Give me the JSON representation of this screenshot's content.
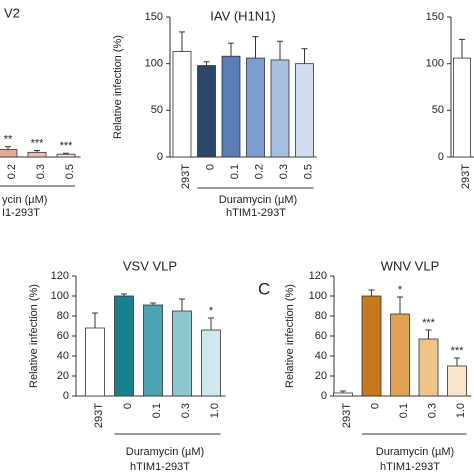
{
  "chart_data": [
    {
      "type": "bar",
      "title": "V2",
      "categories": [
        "0.2",
        "0.3",
        "0.5"
      ],
      "values": [
        8,
        5,
        3
      ],
      "errors": [
        3,
        2,
        1
      ],
      "annotations": [
        "**",
        "***",
        "***"
      ],
      "colors": [
        "#e3a999",
        "#ecc0b3",
        "#f5dcd3"
      ],
      "ylim": [
        0,
        150
      ],
      "xlabel": "ycin (µM)",
      "group_label": "I1-293T"
    },
    {
      "type": "bar",
      "title": "IAV (H1N1)",
      "ylabel": "Relative infection (%)",
      "categories": [
        "293T",
        "0",
        "0.1",
        "0.2",
        "0.3",
        "0.5"
      ],
      "values": [
        113,
        98,
        108,
        106,
        104,
        100
      ],
      "errors": [
        21,
        4,
        14,
        23,
        20,
        16
      ],
      "colors": [
        "#ffffff",
        "#2b4669",
        "#5a7db5",
        "#7c9dcd",
        "#a5bfe1",
        "#d2def0"
      ],
      "ylim": [
        0,
        150
      ],
      "yticks": [
        0,
        50,
        100,
        150
      ],
      "xlabel": "Duramycin (µM)",
      "group_label": "hTIM1-293T"
    },
    {
      "type": "bar",
      "categories": [
        "293T"
      ],
      "values": [
        106
      ],
      "errors": [
        20
      ],
      "colors": [
        "#ffffff"
      ],
      "ylim": [
        0,
        150
      ],
      "yticks": [
        0,
        50,
        100,
        150
      ]
    },
    {
      "type": "bar",
      "title": "VSV VLP",
      "ylabel": "Relative infection (%)",
      "categories": [
        "293T",
        "0",
        "0.1",
        "0.3",
        "1.0"
      ],
      "values": [
        68,
        100,
        91,
        85,
        66
      ],
      "errors": [
        15,
        2,
        2,
        12,
        12
      ],
      "annotations": [
        null,
        null,
        null,
        null,
        "*"
      ],
      "colors": [
        "#ffffff",
        "#1a7f8e",
        "#4ba4b1",
        "#8fc7d0",
        "#cfe8ed"
      ],
      "ylim": [
        0,
        120
      ],
      "yticks": [
        0,
        20,
        40,
        60,
        80,
        100,
        120
      ],
      "xlabel": "Duramycin (µM)",
      "group_label": "hTIM1-293T"
    },
    {
      "type": "bar",
      "panel_label": "C",
      "title": "WNV VLP",
      "ylabel": "Relative infection (%)",
      "categories": [
        "293T",
        "0",
        "0.1",
        "0.3",
        "1.0"
      ],
      "values": [
        3,
        100,
        82,
        57,
        30
      ],
      "errors": [
        2,
        6,
        17,
        9,
        8
      ],
      "annotations": [
        null,
        null,
        "*",
        "***",
        "***"
      ],
      "colors": [
        "#ffffff",
        "#c8781f",
        "#e0a152",
        "#efc38c",
        "#f9e5cd"
      ],
      "ylim": [
        0,
        120
      ],
      "yticks": [
        0,
        20,
        40,
        60,
        80,
        100,
        120
      ],
      "xlabel": "Duramycin (µM)",
      "group_label": "hTIM1-293T"
    }
  ]
}
